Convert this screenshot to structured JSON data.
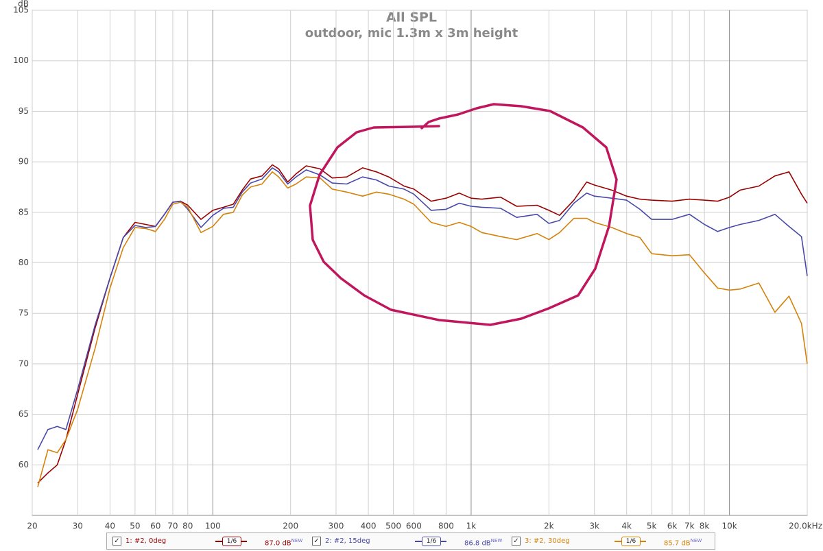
{
  "chart_data": {
    "type": "line",
    "title": "All SPL",
    "subtitle": "outdoor, mic 1.3m x 3m height",
    "y_label": "dB",
    "x_scale": "log",
    "grid": true,
    "xlim": [
      20,
      20000
    ],
    "ylim": [
      55,
      105
    ],
    "yticks": [
      60,
      65,
      70,
      75,
      80,
      85,
      90,
      95,
      100,
      105
    ],
    "xticks": [
      20,
      30,
      40,
      50,
      60,
      70,
      80,
      100,
      200,
      300,
      400,
      500,
      600,
      800,
      {
        "value": 1000,
        "label": "1k"
      },
      {
        "value": 2000,
        "label": "2k"
      },
      {
        "value": 3000,
        "label": "3k"
      },
      {
        "value": 4000,
        "label": "4k"
      },
      {
        "value": 5000,
        "label": "5k"
      },
      {
        "value": 6000,
        "label": "6k"
      },
      {
        "value": 7000,
        "label": "7k"
      },
      {
        "value": 8000,
        "label": "8k"
      },
      {
        "value": 10000,
        "label": "10k"
      },
      {
        "value": 20000,
        "label": "20.0kHz"
      }
    ],
    "x": [
      21,
      23,
      25,
      27,
      30,
      35,
      40,
      45,
      50,
      55,
      60,
      65,
      70,
      75,
      80,
      90,
      100,
      110,
      120,
      130,
      140,
      155,
      170,
      180,
      195,
      210,
      230,
      260,
      290,
      330,
      380,
      430,
      480,
      550,
      600,
      700,
      800,
      900,
      1000,
      1100,
      1300,
      1500,
      1800,
      2000,
      2200,
      2500,
      2800,
      3000,
      3500,
      4000,
      4500,
      5000,
      6000,
      7000,
      8000,
      9000,
      10000,
      11000,
      13000,
      15000,
      17000,
      19000,
      20000
    ],
    "series": [
      {
        "name": "1: #2, 0deg",
        "color": "#990000",
        "smoothing": "1/6",
        "level": "87.0 dB",
        "level_tag": "NEW",
        "values": [
          58.2,
          59.2,
          60.0,
          62.5,
          67,
          73.5,
          78.5,
          82.5,
          84.0,
          83.8,
          83.6,
          84.8,
          86.0,
          86.1,
          85.7,
          84.3,
          85.2,
          85.5,
          85.8,
          87.2,
          88.3,
          88.6,
          89.7,
          89.3,
          88.0,
          88.8,
          89.6,
          89.3,
          88.4,
          88.5,
          89.4,
          89.0,
          88.5,
          87.6,
          87.3,
          86.1,
          86.4,
          86.9,
          86.4,
          86.3,
          86.5,
          85.6,
          85.7,
          85.2,
          84.7,
          86.2,
          88.0,
          87.7,
          87.2,
          86.6,
          86.3,
          86.2,
          86.1,
          86.3,
          86.2,
          86.1,
          86.5,
          87.2,
          87.6,
          88.6,
          89.0,
          86.8,
          85.9
        ]
      },
      {
        "name": "2: #2, 15deg",
        "color": "#4848a8",
        "smoothing": "1/6",
        "level": "86.8 dB",
        "level_tag": "NEW",
        "values": [
          61.5,
          63.5,
          63.8,
          63.5,
          67.5,
          73.8,
          78.5,
          82.5,
          83.7,
          83.5,
          83.6,
          84.8,
          86.0,
          86.1,
          85.3,
          83.5,
          84.7,
          85.4,
          85.5,
          87.0,
          87.9,
          88.3,
          89.4,
          89.0,
          87.8,
          88.5,
          89.2,
          88.7,
          87.9,
          87.8,
          88.5,
          88.2,
          87.6,
          87.3,
          86.8,
          85.2,
          85.3,
          85.9,
          85.6,
          85.5,
          85.4,
          84.5,
          84.8,
          83.9,
          84.2,
          85.9,
          86.9,
          86.6,
          86.4,
          86.2,
          85.3,
          84.3,
          84.3,
          84.8,
          83.8,
          83.1,
          83.5,
          83.8,
          84.2,
          84.8,
          83.6,
          82.6,
          78.7
        ]
      },
      {
        "name": "3: #2, 30deg",
        "color": "#d4820a",
        "smoothing": "1/6",
        "level": "85.7 dB",
        "level_tag": "NEW",
        "values": [
          57.8,
          61.5,
          61.2,
          62.5,
          65.5,
          71.5,
          77.5,
          81.5,
          83.5,
          83.4,
          83.1,
          84.3,
          85.8,
          86.0,
          85.5,
          83.0,
          83.6,
          84.8,
          85.0,
          86.7,
          87.5,
          87.8,
          89.0,
          88.5,
          87.4,
          87.8,
          88.5,
          88.4,
          87.3,
          87.0,
          86.6,
          87.0,
          86.8,
          86.3,
          85.8,
          84.0,
          83.6,
          84.0,
          83.6,
          83.0,
          82.6,
          82.3,
          82.9,
          82.3,
          83.0,
          84.4,
          84.4,
          84.0,
          83.5,
          82.9,
          82.5,
          80.9,
          80.7,
          80.8,
          79.0,
          77.5,
          77.3,
          77.4,
          78.0,
          75.1,
          76.7,
          74.0,
          70.0
        ]
      }
    ]
  }
}
